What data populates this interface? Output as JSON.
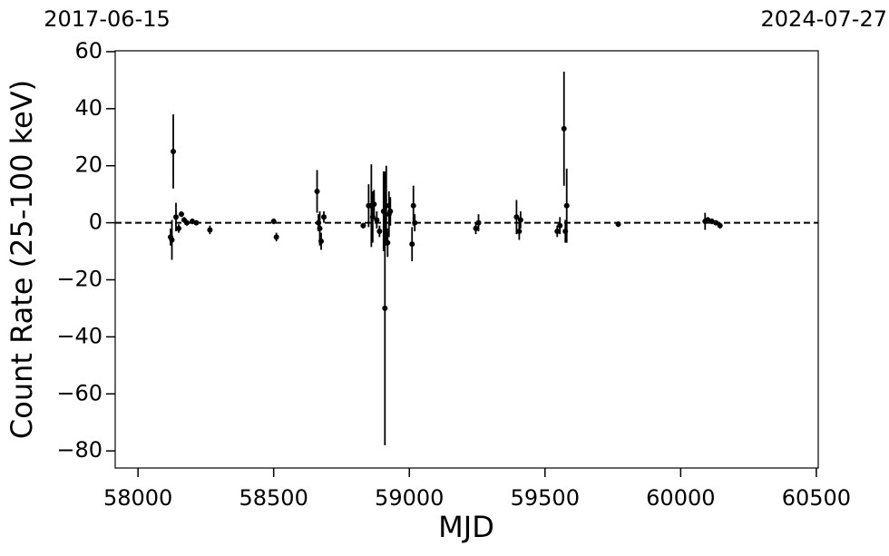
{
  "chart_data": {
    "type": "scatter",
    "x_label": "MJD",
    "y_label": "Count Rate (25-100 keV)",
    "top_labels": [
      "2017-06-15",
      "2024-07-27"
    ],
    "xlim": [
      57916,
      60507
    ],
    "ylim": [
      -86,
      60.3
    ],
    "xticks": [
      58000,
      58500,
      59000,
      59500,
      60000,
      60500
    ],
    "yticks": [
      {
        "value": -80,
        "label": "−80"
      },
      {
        "value": -60,
        "label": "−60"
      },
      {
        "value": -40,
        "label": "−40"
      },
      {
        "value": -20,
        "label": "−20"
      },
      0,
      20,
      40,
      60
    ],
    "reference_line": 0,
    "series": [
      {
        "color": "#000000",
        "x": [
          58120,
          58125,
          58130,
          58140,
          58150,
          58160,
          58170,
          58180,
          58200,
          58215,
          58265,
          58500,
          58510,
          58660,
          58665,
          58670,
          58675,
          58685,
          58830,
          58850,
          58860,
          58865,
          58870,
          58880,
          58890,
          58905,
          58910,
          58915,
          58920,
          58925,
          58930,
          59010,
          59015,
          59020,
          59245,
          59255,
          59395,
          59405,
          59410,
          59545,
          59555,
          59570,
          59575,
          59580,
          59770,
          60090,
          60100,
          60115,
          60130,
          60145
        ],
        "values": [
          -5,
          -6,
          25,
          2,
          -2,
          3,
          1,
          0,
          0.5,
          0,
          -2.5,
          0.5,
          -5,
          11,
          0,
          -2,
          -6.5,
          2,
          -1,
          6,
          6,
          2,
          6.5,
          1,
          -3,
          4,
          -30,
          6,
          -7,
          3,
          4,
          -7.5,
          6,
          0,
          -2,
          0,
          2,
          -3,
          1,
          -3,
          -1,
          33,
          -3,
          6,
          -0.5,
          0.5,
          1,
          0.5,
          0,
          -1
        ],
        "errors": [
          3,
          7,
          13,
          5,
          1.5,
          1,
          1,
          1,
          1,
          0.5,
          1.5,
          1,
          1.5,
          7.5,
          3,
          6,
          3,
          2,
          1,
          7.5,
          14.5,
          9,
          5,
          3,
          2,
          14,
          48,
          14,
          5,
          8,
          5,
          6,
          7,
          3,
          2,
          3,
          6,
          3,
          3,
          2,
          3,
          20,
          4,
          13,
          1,
          3,
          1,
          1,
          0.5,
          1
        ]
      }
    ]
  }
}
